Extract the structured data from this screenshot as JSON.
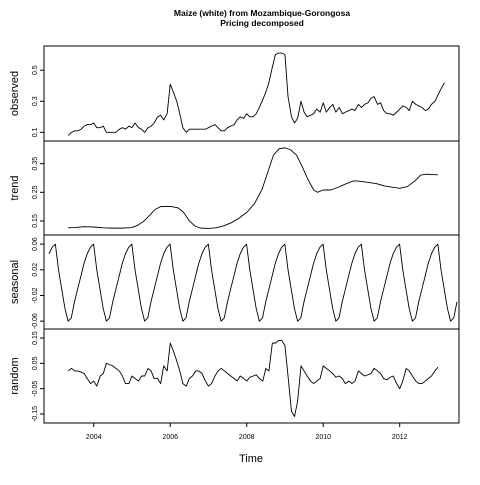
{
  "chart_data": {
    "type": "line",
    "title": "Maize (white) from Mozambique-Gorongosa",
    "subtitle": "Pricing decomposed",
    "xlabel": "Time",
    "xlim": [
      2002.7,
      2013.55
    ],
    "x_ticks": [
      {
        "value": 2004,
        "label": "2004"
      },
      {
        "value": 2006,
        "label": "2006"
      },
      {
        "value": 2008,
        "label": "2008"
      },
      {
        "value": 2010,
        "label": "2010"
      },
      {
        "value": 2012,
        "label": "2012"
      }
    ],
    "panels": [
      {
        "key": "observed",
        "ylabel": "observed",
        "ylim": [
          0.07,
          0.63
        ],
        "y_ticks": [
          {
            "value": 0.1,
            "label": "0.1"
          },
          {
            "value": 0.3,
            "label": "0.3"
          },
          {
            "value": 0.5,
            "label": "0.5"
          }
        ],
        "series": {
          "x": [
            2003.33,
            2003.42,
            2003.5,
            2003.58,
            2003.67,
            2003.75,
            2003.83,
            2003.92,
            2004,
            2004.08,
            2004.17,
            2004.25,
            2004.33,
            2004.42,
            2004.5,
            2004.58,
            2004.67,
            2004.75,
            2004.83,
            2004.92,
            2005,
            2005.08,
            2005.17,
            2005.25,
            2005.33,
            2005.42,
            2005.5,
            2005.58,
            2005.67,
            2005.75,
            2005.83,
            2005.92,
            2006,
            2006.08,
            2006.17,
            2006.25,
            2006.33,
            2006.42,
            2006.5,
            2006.58,
            2006.67,
            2006.75,
            2006.83,
            2006.92,
            2007,
            2007.08,
            2007.17,
            2007.25,
            2007.33,
            2007.42,
            2007.5,
            2007.58,
            2007.67,
            2007.75,
            2007.83,
            2007.92,
            2008,
            2008.08,
            2008.17,
            2008.25,
            2008.33,
            2008.42,
            2008.5,
            2008.58,
            2008.67,
            2008.75,
            2008.83,
            2008.92,
            2009,
            2009.08,
            2009.17,
            2009.25,
            2009.33,
            2009.42,
            2009.5,
            2009.58,
            2009.67,
            2009.75,
            2009.83,
            2009.92,
            2010,
            2010.08,
            2010.17,
            2010.25,
            2010.33,
            2010.42,
            2010.5,
            2010.58,
            2010.67,
            2010.75,
            2010.83,
            2010.92,
            2011,
            2011.08,
            2011.17,
            2011.25,
            2011.33,
            2011.42,
            2011.5,
            2011.58,
            2011.67,
            2011.75,
            2011.83,
            2011.92,
            2012,
            2012.08,
            2012.17,
            2012.25,
            2012.33,
            2012.42,
            2012.5,
            2012.58,
            2012.67,
            2012.75,
            2012.83,
            2012.92,
            2013
          ],
          "y": [
            0.08,
            0.1,
            0.11,
            0.11,
            0.12,
            0.14,
            0.15,
            0.15,
            0.16,
            0.13,
            0.13,
            0.14,
            0.1,
            0.1,
            0.1,
            0.1,
            0.12,
            0.13,
            0.12,
            0.14,
            0.13,
            0.16,
            0.13,
            0.12,
            0.1,
            0.13,
            0.14,
            0.16,
            0.2,
            0.21,
            0.18,
            0.22,
            0.41,
            0.36,
            0.3,
            0.22,
            0.13,
            0.1,
            0.12,
            0.12,
            0.12,
            0.12,
            0.12,
            0.12,
            0.13,
            0.14,
            0.15,
            0.13,
            0.11,
            0.11,
            0.13,
            0.14,
            0.15,
            0.18,
            0.2,
            0.19,
            0.22,
            0.2,
            0.2,
            0.22,
            0.26,
            0.31,
            0.36,
            0.42,
            0.52,
            0.6,
            0.61,
            0.61,
            0.6,
            0.33,
            0.2,
            0.16,
            0.19,
            0.3,
            0.23,
            0.2,
            0.21,
            0.22,
            0.25,
            0.23,
            0.29,
            0.23,
            0.26,
            0.28,
            0.23,
            0.26,
            0.22,
            0.23,
            0.24,
            0.25,
            0.24,
            0.28,
            0.26,
            0.28,
            0.29,
            0.32,
            0.33,
            0.28,
            0.29,
            0.24,
            0.22,
            0.22,
            0.21,
            0.23,
            0.25,
            0.27,
            0.26,
            0.24,
            0.3,
            0.28,
            0.27,
            0.26,
            0.24,
            0.25,
            0.28,
            0.3,
            0.34
          ],
          "x_tail": [
            2013.08,
            2013.17
          ],
          "y_tail": [
            0.38,
            0.42
          ]
        }
      },
      {
        "key": "trend",
        "ylabel": "trend",
        "ylim": [
          0.115,
          0.415
        ],
        "y_ticks": [
          {
            "value": 0.15,
            "label": "0.15"
          },
          {
            "value": 0.25,
            "label": "0.25"
          },
          {
            "value": 0.35,
            "label": "0.35"
          }
        ],
        "series": {
          "x": [
            2003.33,
            2003.5,
            2003.75,
            2004,
            2004.25,
            2004.5,
            2004.75,
            2005,
            2005.15,
            2005.3,
            2005.45,
            2005.6,
            2005.75,
            2005.9,
            2006.05,
            2006.2,
            2006.35,
            2006.5,
            2006.65,
            2006.8,
            2007,
            2007.2,
            2007.4,
            2007.6,
            2007.8,
            2008,
            2008.2,
            2008.4,
            2008.55,
            2008.7,
            2008.85,
            2009,
            2009.15,
            2009.3,
            2009.45,
            2009.6,
            2009.75,
            2009.85,
            2010,
            2010.2,
            2010.4,
            2010.6,
            2010.8,
            2011,
            2011.2,
            2011.4,
            2011.6,
            2011.8,
            2012,
            2012.2,
            2012.4,
            2012.55,
            2012.7,
            2012.85,
            2013
          ],
          "y": [
            0.126,
            0.127,
            0.13,
            0.129,
            0.126,
            0.125,
            0.125,
            0.127,
            0.135,
            0.148,
            0.168,
            0.19,
            0.2,
            0.201,
            0.2,
            0.196,
            0.18,
            0.15,
            0.132,
            0.125,
            0.124,
            0.126,
            0.133,
            0.144,
            0.16,
            0.18,
            0.21,
            0.26,
            0.32,
            0.38,
            0.402,
            0.405,
            0.398,
            0.38,
            0.34,
            0.295,
            0.258,
            0.25,
            0.258,
            0.258,
            0.268,
            0.28,
            0.29,
            0.288,
            0.284,
            0.28,
            0.272,
            0.268,
            0.264,
            0.27,
            0.29,
            0.31,
            0.313,
            0.312,
            0.311
          ]
        }
      },
      {
        "key": "seasonal",
        "ylabel": "seasonal",
        "ylim": [
          -0.066,
          0.068
        ],
        "y_ticks": [
          {
            "value": -0.06,
            "label": "-0.06"
          },
          {
            "value": -0.02,
            "label": "-0.02"
          },
          {
            "value": 0.02,
            "label": "0.02"
          },
          {
            "value": 0.06,
            "label": "0.06"
          }
        ],
        "series": {
          "start": 2002.83,
          "step": 0.0833333,
          "cycles": 11,
          "pattern": [
            0.045,
            0.055,
            0.06,
            0.02,
            -0.01,
            -0.04,
            -0.06,
            -0.055,
            -0.03,
            -0.01,
            0.01,
            0.03
          ]
        }
      },
      {
        "key": "random",
        "ylabel": "random",
        "ylim": [
          -0.17,
          0.17
        ],
        "y_ticks": [
          {
            "value": -0.15,
            "label": "-0.15"
          },
          {
            "value": -0.05,
            "label": "-0.05"
          },
          {
            "value": 0.05,
            "label": "0.05"
          },
          {
            "value": 0.15,
            "label": "0.15"
          }
        ],
        "series": {
          "x": [
            2003.33,
            2003.42,
            2003.5,
            2003.58,
            2003.67,
            2003.75,
            2003.83,
            2003.92,
            2004,
            2004.08,
            2004.17,
            2004.25,
            2004.33,
            2004.42,
            2004.5,
            2004.58,
            2004.67,
            2004.75,
            2004.83,
            2004.92,
            2005,
            2005.08,
            2005.17,
            2005.25,
            2005.33,
            2005.42,
            2005.5,
            2005.58,
            2005.67,
            2005.75,
            2005.83,
            2005.92,
            2006,
            2006.08,
            2006.17,
            2006.25,
            2006.33,
            2006.42,
            2006.5,
            2006.58,
            2006.67,
            2006.75,
            2006.83,
            2006.92,
            2007,
            2007.08,
            2007.17,
            2007.25,
            2007.33,
            2007.42,
            2007.5,
            2007.58,
            2007.67,
            2007.75,
            2007.83,
            2007.92,
            2008,
            2008.08,
            2008.17,
            2008.25,
            2008.33,
            2008.42,
            2008.5,
            2008.58,
            2008.67,
            2008.75,
            2008.83,
            2008.92,
            2009,
            2009.08,
            2009.17,
            2009.25,
            2009.33,
            2009.42,
            2009.5,
            2009.58,
            2009.67,
            2009.75,
            2009.83,
            2009.92,
            2010,
            2010.08,
            2010.17,
            2010.25,
            2010.33,
            2010.42,
            2010.5,
            2010.58,
            2010.67,
            2010.75,
            2010.83,
            2010.92,
            2011,
            2011.08,
            2011.17,
            2011.25,
            2011.33,
            2011.42,
            2011.5,
            2011.58,
            2011.67,
            2011.75,
            2011.83,
            2011.92,
            2012,
            2012.08,
            2012.17,
            2012.25,
            2012.33,
            2012.42,
            2012.5,
            2012.58,
            2012.67,
            2012.75,
            2012.83,
            2012.92,
            2013
          ],
          "y": [
            0.02,
            0.03,
            0.02,
            0.02,
            0.015,
            0.01,
            -0.01,
            -0.03,
            -0.02,
            -0.04,
            0.0,
            0.01,
            0.05,
            0.045,
            0.04,
            0.03,
            0.02,
            0.0,
            -0.03,
            -0.03,
            0.0,
            -0.01,
            -0.02,
            0.0,
            0.0,
            0.03,
            0.02,
            -0.01,
            -0.01,
            -0.03,
            0.04,
            0.02,
            0.13,
            0.1,
            0.06,
            0.02,
            -0.03,
            -0.04,
            -0.01,
            0.0,
            0.02,
            0.02,
            0.01,
            -0.02,
            -0.04,
            -0.03,
            0.0,
            0.02,
            0.03,
            0.02,
            0.01,
            0.0,
            -0.01,
            -0.02,
            0.0,
            -0.01,
            -0.02,
            -0.005,
            0.0,
            0.005,
            -0.01,
            -0.02,
            0.03,
            0.02,
            0.13,
            0.13,
            0.14,
            0.14,
            0.12,
            0.0,
            -0.14,
            -0.16,
            -0.1,
            0.04,
            0.02,
            0.0,
            -0.02,
            -0.03,
            -0.02,
            -0.01,
            0.04,
            0.03,
            0.02,
            0.01,
            -0.005,
            0.0,
            -0.01,
            -0.03,
            -0.02,
            -0.03,
            -0.02,
            0.02,
            0.01,
            0.0,
            0.005,
            0.01,
            0.03,
            0.02,
            0.01,
            -0.01,
            -0.015,
            -0.005,
            0.0,
            -0.03,
            -0.05,
            -0.02,
            0.03,
            0.02,
            0.0,
            -0.02,
            -0.03,
            -0.03,
            -0.02,
            -0.01,
            0.0,
            0.02,
            0.035
          ]
        }
      }
    ]
  }
}
